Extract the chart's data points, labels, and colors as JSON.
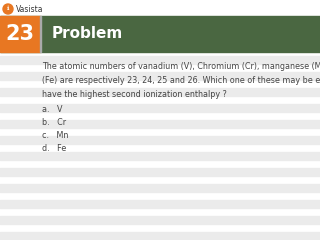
{
  "problem_number": "23",
  "header_text": "Problem",
  "body_text": "The atomic numbers of vanadium (V), Chromium (Cr), manganese (Mn) and iron\n(Fe) are respectively 23, 24, 25 and 26. Which one of these may be expected to\nhave the highest second ionization enthalpy ?",
  "options": [
    "a.   V",
    "b.   Cr",
    "c.   Mn",
    "d.   Fe"
  ],
  "number_bg_color": "#E87722",
  "header_bg_color": "#4A6741",
  "header_text_color": "#FFFFFF",
  "number_text_color": "#FFFFFF",
  "body_text_color": "#444444",
  "option_text_color": "#444444",
  "background_color": "#FFFFFF",
  "logo_text": "Vasista",
  "logo_color": "#E87722",
  "stripe_color": "#EBEBEB",
  "top_bar_color": "#FFFFFF",
  "fig_width": 3.2,
  "fig_height": 2.4,
  "dpi": 100
}
